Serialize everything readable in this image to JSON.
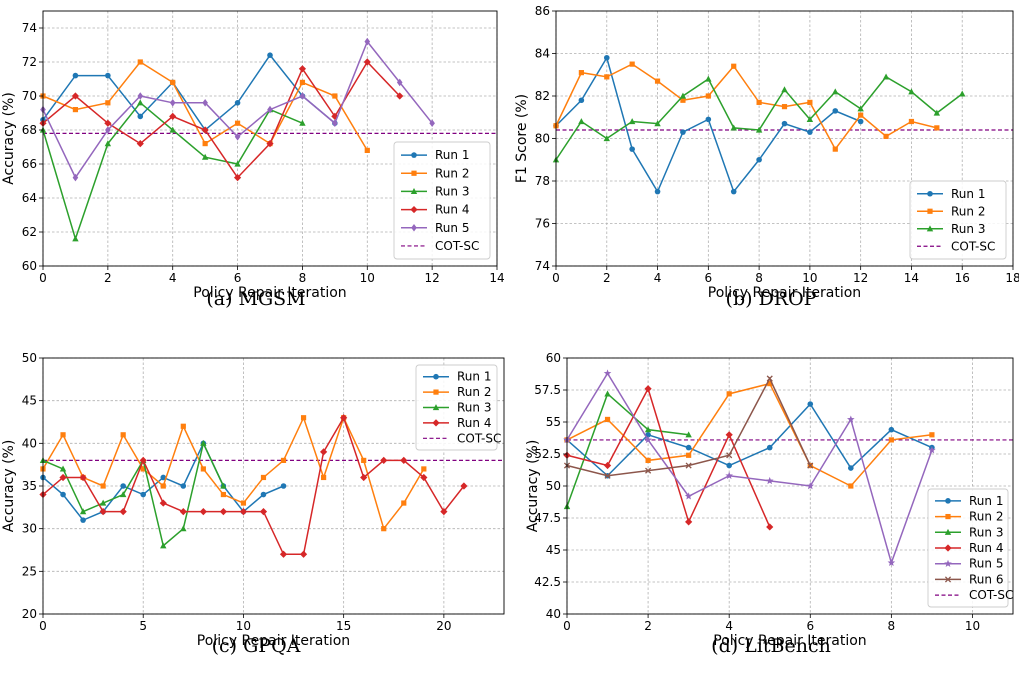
{
  "chart_data": [
    {
      "type": "line",
      "caption": "(a) MGSM",
      "xlabel": "Policy Repair Iteration",
      "ylabel": "Accuracy (%)",
      "xlim": [
        0,
        14
      ],
      "ylim": [
        60,
        75
      ],
      "xticks": [
        0,
        2,
        4,
        6,
        8,
        10,
        12,
        14
      ],
      "yticks": [
        60,
        62,
        64,
        66,
        68,
        70,
        72,
        74
      ],
      "grid": true,
      "legend_position": "lower-right",
      "baseline": {
        "name": "COT-SC",
        "value": 67.8
      },
      "series": [
        {
          "name": "Run 1",
          "color": "#1f77b4",
          "marker": "circle",
          "x": [
            0,
            1,
            2,
            3,
            4,
            5,
            6,
            7,
            8,
            9
          ],
          "y": [
            68.6,
            71.2,
            71.2,
            68.8,
            70.8,
            68.0,
            69.6,
            72.4,
            70.0,
            68.4
          ]
        },
        {
          "name": "Run 2",
          "color": "#ff7f0e",
          "marker": "square",
          "x": [
            0,
            1,
            2,
            3,
            4,
            5,
            6,
            7,
            8,
            9,
            10
          ],
          "y": [
            70.0,
            69.2,
            69.6,
            72.0,
            70.8,
            67.2,
            68.4,
            67.2,
            70.8,
            70.0,
            66.8
          ]
        },
        {
          "name": "Run 3",
          "color": "#2ca02c",
          "marker": "triangle",
          "x": [
            0,
            1,
            2,
            3,
            4,
            5,
            6,
            7,
            8
          ],
          "y": [
            68.0,
            61.6,
            67.2,
            69.6,
            68.0,
            66.4,
            66.0,
            69.2,
            68.4
          ]
        },
        {
          "name": "Run 4",
          "color": "#d62728",
          "marker": "diamond",
          "x": [
            0,
            1,
            2,
            3,
            4,
            5,
            6,
            7,
            8,
            9,
            10,
            11
          ],
          "y": [
            68.4,
            70.0,
            68.4,
            67.2,
            68.8,
            68.0,
            65.2,
            67.2,
            71.6,
            68.8,
            72.0,
            70.0
          ]
        },
        {
          "name": "Run 5",
          "color": "#9467bd",
          "marker": "thin-diamond",
          "x": [
            0,
            1,
            2,
            3,
            4,
            5,
            6,
            7,
            8,
            9,
            10,
            11,
            12
          ],
          "y": [
            69.2,
            65.2,
            68.0,
            70.0,
            69.6,
            69.6,
            67.6,
            69.2,
            70.0,
            68.4,
            73.2,
            70.8,
            68.4
          ]
        }
      ]
    },
    {
      "type": "line",
      "caption": "(b) DROP",
      "xlabel": "Policy Repair Iteration",
      "ylabel": "F1 Score (%)",
      "xlim": [
        0,
        18
      ],
      "ylim": [
        74,
        86
      ],
      "xticks": [
        0,
        2,
        4,
        6,
        8,
        10,
        12,
        14,
        16,
        18
      ],
      "yticks": [
        74,
        76,
        78,
        80,
        82,
        84,
        86
      ],
      "grid": true,
      "legend_position": "lower-right",
      "baseline": {
        "name": "COT-SC",
        "value": 80.4
      },
      "series": [
        {
          "name": "Run 1",
          "color": "#1f77b4",
          "marker": "circle",
          "x": [
            0,
            1,
            2,
            3,
            4,
            5,
            6,
            7,
            8,
            9,
            10,
            11,
            12
          ],
          "y": [
            80.6,
            81.8,
            83.8,
            79.5,
            77.5,
            80.3,
            80.9,
            77.5,
            79.0,
            80.7,
            80.3,
            81.3,
            80.8
          ]
        },
        {
          "name": "Run 2",
          "color": "#ff7f0e",
          "marker": "square",
          "x": [
            0,
            1,
            2,
            3,
            4,
            5,
            6,
            7,
            8,
            9,
            10,
            11,
            12,
            13,
            14,
            15
          ],
          "y": [
            80.6,
            83.1,
            82.9,
            83.5,
            82.7,
            81.8,
            82.0,
            83.4,
            81.7,
            81.5,
            81.7,
            79.5,
            81.1,
            80.1,
            80.8,
            80.5
          ]
        },
        {
          "name": "Run 3",
          "color": "#2ca02c",
          "marker": "triangle",
          "x": [
            0,
            1,
            2,
            3,
            4,
            5,
            6,
            7,
            8,
            9,
            10,
            11,
            12,
            13,
            14,
            15,
            16
          ],
          "y": [
            79.0,
            80.8,
            80.0,
            80.8,
            80.7,
            82.0,
            82.8,
            80.5,
            80.4,
            82.3,
            80.9,
            82.2,
            81.4,
            82.9,
            82.2,
            81.2,
            82.1
          ]
        }
      ]
    },
    {
      "type": "line",
      "caption": "(c) GPQA",
      "xlabel": "Policy Repair Iteration",
      "ylabel": "Accuracy (%)",
      "xlim": [
        0,
        23
      ],
      "ylim": [
        20,
        50
      ],
      "xticks": [
        0,
        5,
        10,
        15,
        20
      ],
      "yticks": [
        20,
        25,
        30,
        35,
        40,
        45,
        50
      ],
      "grid": true,
      "legend_position": "top-right",
      "baseline": {
        "name": "COT-SC",
        "value": 38.0
      },
      "series": [
        {
          "name": "Run 1",
          "color": "#1f77b4",
          "marker": "circle",
          "x": [
            0,
            1,
            2,
            3,
            4,
            5,
            6,
            7,
            8,
            9,
            10,
            11,
            12
          ],
          "y": [
            36,
            34,
            31,
            32,
            35,
            34,
            36,
            35,
            40,
            35,
            32,
            34,
            35
          ]
        },
        {
          "name": "Run 2",
          "color": "#ff7f0e",
          "marker": "square",
          "x": [
            0,
            1,
            2,
            3,
            4,
            5,
            6,
            7,
            8,
            9,
            10,
            11,
            12,
            13,
            14,
            15,
            16,
            17,
            18,
            19
          ],
          "y": [
            37,
            41,
            36,
            35,
            41,
            37,
            35,
            42,
            37,
            34,
            33,
            36,
            38,
            43,
            36,
            43,
            38,
            30,
            33,
            37
          ]
        },
        {
          "name": "Run 3",
          "color": "#2ca02c",
          "marker": "triangle",
          "x": [
            0,
            1,
            2,
            3,
            4,
            5,
            6,
            7,
            8,
            9
          ],
          "y": [
            38,
            37,
            32,
            33,
            34,
            38,
            28,
            30,
            40,
            35
          ]
        },
        {
          "name": "Run 4",
          "color": "#d62728",
          "marker": "diamond",
          "x": [
            0,
            1,
            2,
            3,
            4,
            5,
            6,
            7,
            8,
            9,
            10,
            11,
            12,
            13,
            14,
            15,
            16,
            17,
            18,
            19,
            20,
            21
          ],
          "y": [
            34,
            36,
            36,
            32,
            32,
            38,
            33,
            32,
            32,
            32,
            32,
            32,
            27,
            27,
            39,
            43,
            36,
            38,
            38,
            36,
            32,
            35
          ]
        }
      ]
    },
    {
      "type": "line",
      "caption": "(d) LitBench",
      "xlabel": "Policy Repair Iteration",
      "ylabel": "Accuracy (%)",
      "xlim": [
        0,
        11
      ],
      "ylim": [
        40.0,
        60.0
      ],
      "xticks": [
        0,
        2,
        4,
        6,
        8,
        10
      ],
      "yticks": [
        40.0,
        42.5,
        45.0,
        47.5,
        50.0,
        52.5,
        55.0,
        57.5,
        60.0
      ],
      "grid": true,
      "legend_position": "lower-right",
      "baseline": {
        "name": "COT-SC",
        "value": 53.6
      },
      "series": [
        {
          "name": "Run 1",
          "color": "#1f77b4",
          "marker": "circle",
          "x": [
            0,
            1,
            2,
            3,
            4,
            5,
            6,
            7,
            8,
            9
          ],
          "y": [
            53.6,
            50.8,
            54.0,
            53.0,
            51.6,
            53.0,
            56.4,
            51.4,
            54.4,
            53.0
          ]
        },
        {
          "name": "Run 2",
          "color": "#ff7f0e",
          "marker": "square",
          "x": [
            0,
            1,
            2,
            3,
            4,
            5,
            6,
            7,
            8,
            9
          ],
          "y": [
            53.6,
            55.2,
            52.0,
            52.4,
            57.2,
            58.0,
            51.6,
            50.0,
            53.6,
            54.0
          ]
        },
        {
          "name": "Run 3",
          "color": "#2ca02c",
          "marker": "triangle",
          "x": [
            0,
            1,
            2,
            3
          ],
          "y": [
            48.4,
            57.2,
            54.4,
            54.0
          ]
        },
        {
          "name": "Run 4",
          "color": "#d62728",
          "marker": "diamond",
          "x": [
            0,
            1,
            2,
            3,
            4,
            5
          ],
          "y": [
            52.4,
            51.6,
            57.6,
            47.2,
            54.0,
            46.8
          ]
        },
        {
          "name": "Run 5",
          "color": "#9467bd",
          "marker": "star",
          "x": [
            0,
            1,
            2,
            3,
            4,
            5,
            6,
            7,
            8,
            9
          ],
          "y": [
            53.6,
            58.8,
            53.6,
            49.2,
            50.8,
            50.4,
            50.0,
            55.2,
            44.0,
            52.8
          ]
        },
        {
          "name": "Run 6",
          "color": "#8c564b",
          "marker": "x",
          "x": [
            0,
            1,
            2,
            3,
            4,
            5,
            6
          ],
          "y": [
            51.6,
            50.8,
            51.2,
            51.6,
            52.4,
            58.4,
            51.6
          ]
        }
      ]
    }
  ]
}
